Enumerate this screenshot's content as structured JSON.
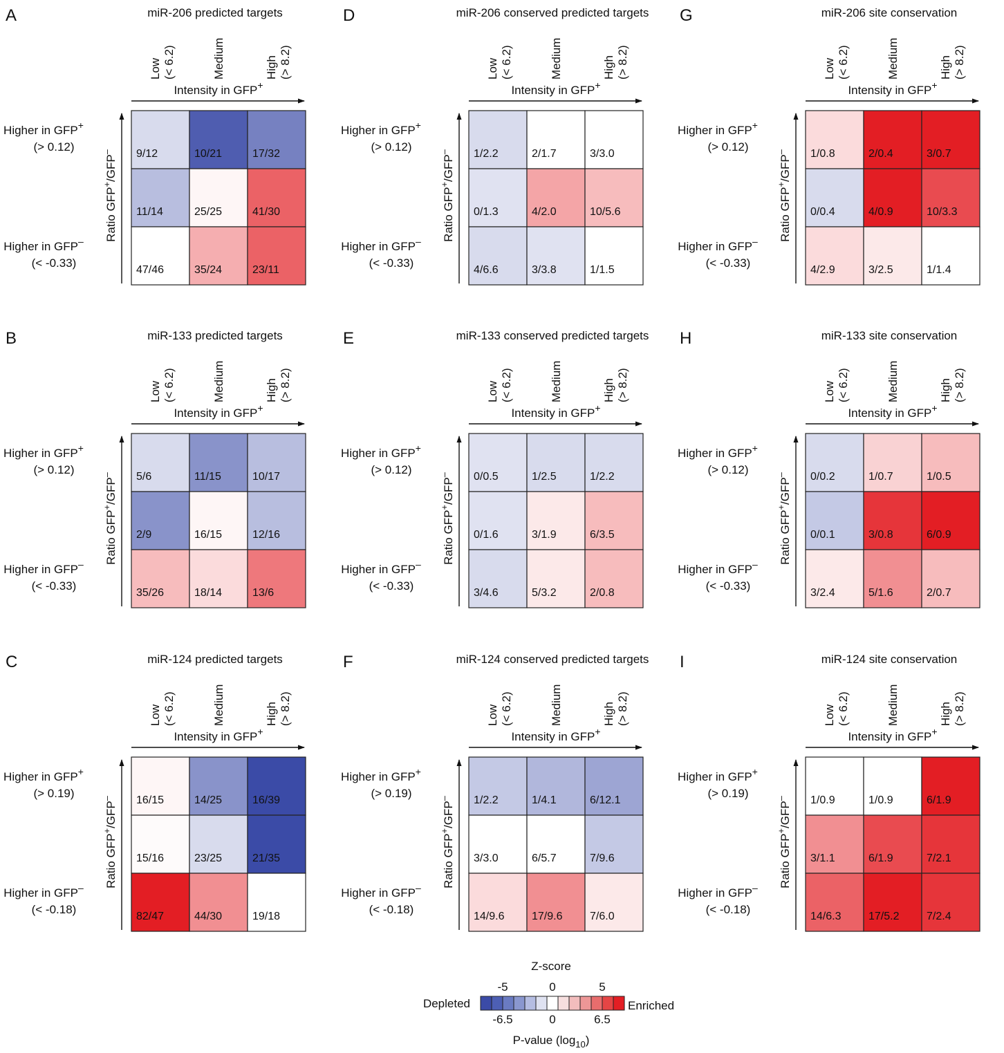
{
  "colorscale": {
    "title": "Z-score",
    "left_label": "Depleted",
    "right_label": "Enriched",
    "z_ticks": [
      "-5",
      "0",
      "5"
    ],
    "p_ticks": [
      "-6.5",
      "0",
      "6.5"
    ],
    "p_label_prefix": "P-value (log",
    "p_label_sub": "10",
    "p_label_suffix": ")",
    "colors": [
      "#3b4ba7",
      "#4d5fb4",
      "#6a7bc2",
      "#8a97cf",
      "#b5bde2",
      "#dfe2f1",
      "#ffffff",
      "#f7dfdf",
      "#f2bdbd",
      "#ed9797",
      "#e86d6d",
      "#e54545",
      "#e31e24"
    ]
  },
  "chart_data": [
    {
      "type": "heatmap",
      "panel": "A",
      "title": "miR-206 predicted targets",
      "columns": [
        {
          "line1": "Low",
          "line2": "(< 6.2)"
        },
        {
          "line1": "Medium",
          "line2": ""
        },
        {
          "line1": "High",
          "line2": "(> 8.2)"
        }
      ],
      "x_axis_label": "Intensity in GFP",
      "x_axis_sup": "+",
      "y_axis_label_parts": [
        "Ratio GFP",
        "+",
        "/GFP",
        "–"
      ],
      "rows": [
        {
          "line1": "Higher in GFP",
          "sup": "+",
          "line2": "(> 0.12)"
        },
        {
          "line1": "",
          "sup": "",
          "line2": ""
        },
        {
          "line1": "Higher in GFP",
          "sup": "–",
          "line2": "(< -0.33)"
        }
      ],
      "cells": [
        [
          "9/12",
          "10/21",
          "17/32"
        ],
        [
          "11/14",
          "25/25",
          "41/30"
        ],
        [
          "47/46",
          "35/24",
          "23/11"
        ]
      ],
      "z": [
        [
          -1,
          -4.5,
          -3.5
        ],
        [
          -1.8,
          0.2,
          3.5
        ],
        [
          0,
          1.8,
          3.5
        ]
      ]
    },
    {
      "type": "heatmap",
      "panel": "B",
      "title": "miR-133 predicted targets",
      "columns": [
        {
          "line1": "Low",
          "line2": "(< 6.2)"
        },
        {
          "line1": "Medium",
          "line2": ""
        },
        {
          "line1": "High",
          "line2": "(> 8.2)"
        }
      ],
      "x_axis_label": "Intensity in GFP",
      "x_axis_sup": "+",
      "y_axis_label_parts": [
        "Ratio GFP",
        "+",
        "/GFP",
        "–"
      ],
      "rows": [
        {
          "line1": "Higher in GFP",
          "sup": "+",
          "line2": "(> 0.12)"
        },
        {
          "line1": "",
          "sup": "",
          "line2": ""
        },
        {
          "line1": "Higher in GFP",
          "sup": "–",
          "line2": "(< -0.33)"
        }
      ],
      "cells": [
        [
          "5/6",
          "11/15",
          "10/17"
        ],
        [
          "2/9",
          "16/15",
          "12/16"
        ],
        [
          "35/26",
          "18/14",
          "13/6"
        ]
      ],
      "z": [
        [
          -1,
          -3,
          -1.8
        ],
        [
          -3,
          0.2,
          -1.8
        ],
        [
          1.5,
          0.8,
          3
        ]
      ]
    },
    {
      "type": "heatmap",
      "panel": "C",
      "title": "miR-124 predicted targets",
      "columns": [
        {
          "line1": "Low",
          "line2": "(< 6.2)"
        },
        {
          "line1": "Medium",
          "line2": ""
        },
        {
          "line1": "High",
          "line2": "(> 8.2)"
        }
      ],
      "x_axis_label": "Intensity in GFP",
      "x_axis_sup": "+",
      "y_axis_label_parts": [
        "Ratio GFP",
        "+",
        "/GFP",
        "–"
      ],
      "rows": [
        {
          "line1": "Higher in GFP",
          "sup": "+",
          "line2": "(> 0.19)"
        },
        {
          "line1": "",
          "sup": "",
          "line2": ""
        },
        {
          "line1": "Higher in GFP",
          "sup": "–",
          "line2": "(< -0.18)"
        }
      ],
      "cells": [
        [
          "16/15",
          "14/25",
          "16/39"
        ],
        [
          "15/16",
          "23/25",
          "21/35"
        ],
        [
          "82/47",
          "44/30",
          "19/18"
        ]
      ],
      "z": [
        [
          0.2,
          -3,
          -5
        ],
        [
          0.1,
          -1,
          -5
        ],
        [
          5,
          2.5,
          0
        ]
      ]
    },
    {
      "type": "heatmap",
      "panel": "D",
      "title": "miR-206 conserved predicted targets",
      "columns": [
        {
          "line1": "Low",
          "line2": "(< 6.2)"
        },
        {
          "line1": "Medium",
          "line2": ""
        },
        {
          "line1": "High",
          "line2": "(> 8.2)"
        }
      ],
      "x_axis_label": "Intensity in GFP",
      "x_axis_sup": "+",
      "y_axis_label_parts": [
        "Ratio GFP",
        "+",
        "/GFP",
        "–"
      ],
      "rows": [
        {
          "line1": "Higher in GFP",
          "sup": "+",
          "line2": "(> 0.12)"
        },
        {
          "line1": "",
          "sup": "",
          "line2": ""
        },
        {
          "line1": "Higher in GFP",
          "sup": "–",
          "line2": "(< -0.33)"
        }
      ],
      "cells": [
        [
          "1/2.2",
          "2/1.7",
          "3/3.0"
        ],
        [
          "0/1.3",
          "4/2.0",
          "10/5.6"
        ],
        [
          "4/6.6",
          "3/3.8",
          "1/1.5"
        ]
      ],
      "z": [
        [
          -1,
          0,
          0
        ],
        [
          -0.8,
          2,
          1.5
        ],
        [
          -1,
          -0.8,
          0
        ]
      ]
    },
    {
      "type": "heatmap",
      "panel": "E",
      "title": "miR-133 conserved predicted targets",
      "columns": [
        {
          "line1": "Low",
          "line2": "(< 6.2)"
        },
        {
          "line1": "Medium",
          "line2": ""
        },
        {
          "line1": "High",
          "line2": "(> 8.2)"
        }
      ],
      "x_axis_label": "Intensity in GFP",
      "x_axis_sup": "+",
      "y_axis_label_parts": [
        "Ratio GFP",
        "+",
        "/GFP",
        "–"
      ],
      "rows": [
        {
          "line1": "Higher in GFP",
          "sup": "+",
          "line2": "(> 0.12)"
        },
        {
          "line1": "",
          "sup": "",
          "line2": ""
        },
        {
          "line1": "Higher in GFP",
          "sup": "–",
          "line2": "(< -0.33)"
        }
      ],
      "cells": [
        [
          "0/0.5",
          "1/2.5",
          "1/2.2"
        ],
        [
          "0/1.6",
          "3/1.9",
          "6/3.5"
        ],
        [
          "3/4.6",
          "5/3.2",
          "2/0.8"
        ]
      ],
      "z": [
        [
          -0.8,
          -1,
          -1
        ],
        [
          -0.8,
          0.5,
          1.5
        ],
        [
          -1,
          0.5,
          1.5
        ]
      ]
    },
    {
      "type": "heatmap",
      "panel": "F",
      "title": "miR-124 conserved predicted targets",
      "columns": [
        {
          "line1": "Low",
          "line2": "(< 6.2)"
        },
        {
          "line1": "Medium",
          "line2": ""
        },
        {
          "line1": "High",
          "line2": "(> 8.2)"
        }
      ],
      "x_axis_label": "Intensity in GFP",
      "x_axis_sup": "+",
      "y_axis_label_parts": [
        "Ratio GFP",
        "+",
        "/GFP",
        "–"
      ],
      "rows": [
        {
          "line1": "Higher in GFP",
          "sup": "+",
          "line2": "(> 0.19)"
        },
        {
          "line1": "",
          "sup": "",
          "line2": ""
        },
        {
          "line1": "Higher in GFP",
          "sup": "–",
          "line2": "(< -0.18)"
        }
      ],
      "cells": [
        [
          "1/2.2",
          "1/4.1",
          "6/12.1"
        ],
        [
          "3/3.0",
          "6/5.7",
          "7/9.6"
        ],
        [
          "14/9.6",
          "17/9.6",
          "7/6.0"
        ]
      ],
      "z": [
        [
          -1.5,
          -2,
          -2.5
        ],
        [
          0,
          0,
          -1.5
        ],
        [
          0.8,
          2.5,
          0.5
        ]
      ]
    },
    {
      "type": "heatmap",
      "panel": "G",
      "title": "miR-206 site conservation",
      "columns": [
        {
          "line1": "Low",
          "line2": "(< 6.2)"
        },
        {
          "line1": "Medium",
          "line2": ""
        },
        {
          "line1": "High",
          "line2": "(> 8.2)"
        }
      ],
      "x_axis_label": "Intensity in GFP",
      "x_axis_sup": "+",
      "y_axis_label_parts": [
        "Ratio GFP",
        "+",
        "/GFP",
        "–"
      ],
      "rows": [
        {
          "line1": "Higher in GFP",
          "sup": "+",
          "line2": "(> 0.12)"
        },
        {
          "line1": "",
          "sup": "",
          "line2": ""
        },
        {
          "line1": "Higher in GFP",
          "sup": "–",
          "line2": "(< -0.33)"
        }
      ],
      "cells": [
        [
          "1/0.8",
          "2/0.4",
          "3/0.7"
        ],
        [
          "0/0.4",
          "4/0.9",
          "10/3.3"
        ],
        [
          "4/2.9",
          "3/2.5",
          "1/1.4"
        ]
      ],
      "z": [
        [
          0.8,
          5,
          5
        ],
        [
          -1,
          5,
          4
        ],
        [
          0.8,
          0.5,
          0
        ]
      ]
    },
    {
      "type": "heatmap",
      "panel": "H",
      "title": "miR-133 site conservation",
      "columns": [
        {
          "line1": "Low",
          "line2": "(< 6.2)"
        },
        {
          "line1": "Medium",
          "line2": ""
        },
        {
          "line1": "High",
          "line2": "(> 8.2)"
        }
      ],
      "x_axis_label": "Intensity in GFP",
      "x_axis_sup": "+",
      "y_axis_label_parts": [
        "Ratio GFP",
        "+",
        "/GFP",
        "–"
      ],
      "rows": [
        {
          "line1": "Higher in GFP",
          "sup": "+",
          "line2": "(> 0.12)"
        },
        {
          "line1": "",
          "sup": "",
          "line2": ""
        },
        {
          "line1": "Higher in GFP",
          "sup": "–",
          "line2": "(< -0.33)"
        }
      ],
      "cells": [
        [
          "0/0.2",
          "1/0.7",
          "1/0.5"
        ],
        [
          "0/0.1",
          "3/0.8",
          "6/0.9"
        ],
        [
          "3/2.4",
          "5/1.6",
          "2/0.7"
        ]
      ],
      "z": [
        [
          -1,
          1,
          1.5
        ],
        [
          -1.5,
          4.5,
          5
        ],
        [
          0.5,
          2.5,
          1.5
        ]
      ]
    },
    {
      "type": "heatmap",
      "panel": "I",
      "title": "miR-124 site conservation",
      "columns": [
        {
          "line1": "Low",
          "line2": "(< 6.2)"
        },
        {
          "line1": "Medium",
          "line2": ""
        },
        {
          "line1": "High",
          "line2": "(> 8.2)"
        }
      ],
      "x_axis_label": "Intensity in GFP",
      "x_axis_sup": "+",
      "y_axis_label_parts": [
        "Ratio GFP",
        "+",
        "/GFP",
        "–"
      ],
      "rows": [
        {
          "line1": "Higher in GFP",
          "sup": "+",
          "line2": "(> 0.19)"
        },
        {
          "line1": "",
          "sup": "",
          "line2": ""
        },
        {
          "line1": "Higher in GFP",
          "sup": "–",
          "line2": "(< -0.18)"
        }
      ],
      "cells": [
        [
          "1/0.9",
          "1/0.9",
          "6/1.9"
        ],
        [
          "3/1.1",
          "6/1.9",
          "7/2.1"
        ],
        [
          "14/6.3",
          "17/5.2",
          "7/2.4"
        ]
      ],
      "z": [
        [
          0,
          0,
          5
        ],
        [
          2.5,
          4,
          4.5
        ],
        [
          3.5,
          5,
          4.5
        ]
      ]
    }
  ]
}
